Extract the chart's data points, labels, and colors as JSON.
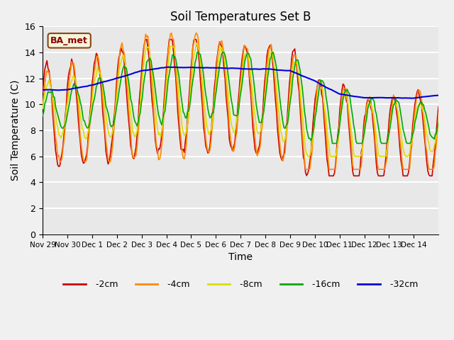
{
  "title": "Soil Temperatures Set B",
  "xlabel": "Time",
  "ylabel": "Soil Temperature (C)",
  "ylim": [
    0,
    16
  ],
  "annotation": "BA_met",
  "background_color": "#e8e8e8",
  "grid_color": "#ffffff",
  "tick_labels": [
    "Nov 29",
    "Nov 30",
    "Dec 1",
    "Dec 2",
    "Dec 3",
    "Dec 4",
    "Dec 5",
    "Dec 6",
    "Dec 7",
    "Dec 8",
    "Dec 9",
    "Dec 10",
    "Dec 11",
    "Dec 12",
    "Dec 13",
    "Dec 14"
  ],
  "series": {
    "-2cm": {
      "color": "#cc0000",
      "lw": 1.2
    },
    "-4cm": {
      "color": "#ff8800",
      "lw": 1.2
    },
    "-8cm": {
      "color": "#dddd00",
      "lw": 1.2
    },
    "-16cm": {
      "color": "#00aa00",
      "lw": 1.2
    },
    "-32cm": {
      "color": "#0000dd",
      "lw": 1.5
    }
  }
}
